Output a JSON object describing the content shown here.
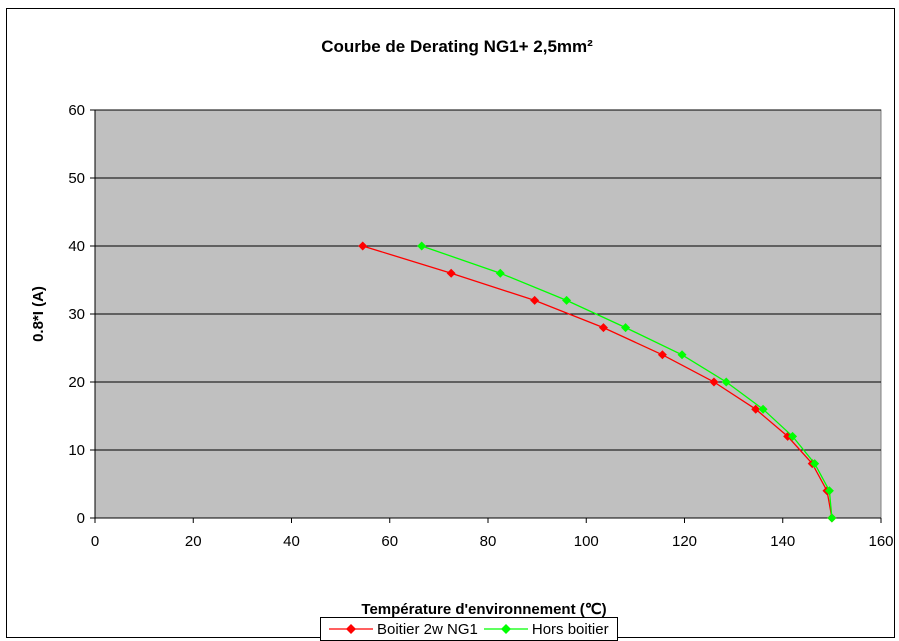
{
  "chart_data": {
    "type": "line",
    "title": "Courbe de Derating NG1+ 2,5mm²",
    "xlabel": "Température d'environnement (℃)",
    "ylabel": "0.8*I (A)",
    "xlim": [
      0,
      160
    ],
    "ylim": [
      0,
      60
    ],
    "xticks": [
      "0",
      "20",
      "40",
      "60",
      "80",
      "100",
      "120",
      "140",
      "160"
    ],
    "yticks": [
      "0",
      "10",
      "20",
      "30",
      "40",
      "50",
      "60"
    ],
    "grid": true,
    "legend_position": "bottom",
    "plot_background": "#c0c0c0",
    "series": [
      {
        "name": "Boitier 2w NG1",
        "color": "#ff0000",
        "marker": "diamond",
        "x": [
          54.5,
          72.5,
          89.5,
          103.5,
          115.5,
          126,
          134.5,
          141,
          146,
          149,
          150
        ],
        "y": [
          40,
          36,
          32,
          28,
          24,
          20,
          16,
          12,
          8,
          4,
          0
        ]
      },
      {
        "name": "Hors boitier",
        "color": "#00ff00",
        "marker": "diamond",
        "x": [
          66.5,
          82.5,
          96,
          108,
          119.5,
          128.5,
          136,
          142,
          146.5,
          149.5,
          150
        ],
        "y": [
          40,
          36,
          32,
          28,
          24,
          20,
          16,
          12,
          8,
          4,
          0
        ]
      }
    ]
  }
}
